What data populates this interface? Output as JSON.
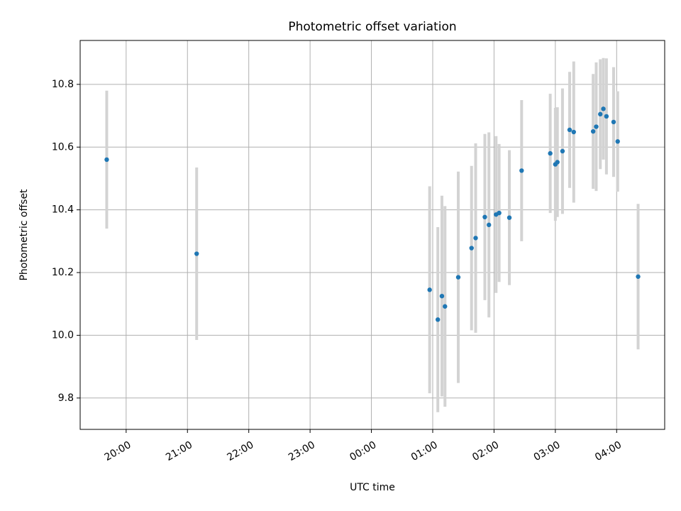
{
  "chart_data": {
    "type": "scatter",
    "title": "Photometric offset variation",
    "xlabel": "UTC time",
    "ylabel": "Photometric offset",
    "grid": true,
    "xlim": [
      "19:15",
      "04:47"
    ],
    "ylim": [
      9.7,
      10.94
    ],
    "x_ticks": [
      "20:00",
      "21:00",
      "22:00",
      "23:00",
      "00:00",
      "01:00",
      "02:00",
      "03:00",
      "04:00"
    ],
    "y_ticks": [
      "9.8",
      "10.0",
      "10.2",
      "10.4",
      "10.6",
      "10.8"
    ],
    "point_color": "#1f77b4",
    "errorbar_color": "#d3d3d3",
    "points": [
      {
        "t": "19:41",
        "y": 10.56,
        "err": 0.22
      },
      {
        "t": "21:09",
        "y": 10.26,
        "err": 0.275
      },
      {
        "t": "00:57",
        "y": 10.145,
        "err": 0.33
      },
      {
        "t": "01:05",
        "y": 10.05,
        "err": 0.295
      },
      {
        "t": "01:09",
        "y": 10.125,
        "err": 0.32
      },
      {
        "t": "01:12",
        "y": 10.092,
        "err": 0.32
      },
      {
        "t": "01:25",
        "y": 10.185,
        "err": 0.337
      },
      {
        "t": "01:38",
        "y": 10.278,
        "err": 0.262
      },
      {
        "t": "01:42",
        "y": 10.31,
        "err": 0.302
      },
      {
        "t": "01:51",
        "y": 10.377,
        "err": 0.265
      },
      {
        "t": "01:55",
        "y": 10.352,
        "err": 0.295
      },
      {
        "t": "02:02",
        "y": 10.385,
        "err": 0.25
      },
      {
        "t": "02:05",
        "y": 10.39,
        "err": 0.22
      },
      {
        "t": "02:15",
        "y": 10.375,
        "err": 0.215
      },
      {
        "t": "02:27",
        "y": 10.525,
        "err": 0.225
      },
      {
        "t": "02:55",
        "y": 10.58,
        "err": 0.19
      },
      {
        "t": "03:00",
        "y": 10.545,
        "err": 0.18
      },
      {
        "t": "03:02",
        "y": 10.552,
        "err": 0.175
      },
      {
        "t": "03:07",
        "y": 10.587,
        "err": 0.2
      },
      {
        "t": "03:14",
        "y": 10.655,
        "err": 0.185
      },
      {
        "t": "03:18",
        "y": 10.648,
        "err": 0.225
      },
      {
        "t": "03:37",
        "y": 10.65,
        "err": 0.183
      },
      {
        "t": "03:40",
        "y": 10.665,
        "err": 0.205
      },
      {
        "t": "03:44",
        "y": 10.705,
        "err": 0.175
      },
      {
        "t": "03:47",
        "y": 10.722,
        "err": 0.162
      },
      {
        "t": "03:50",
        "y": 10.698,
        "err": 0.185
      },
      {
        "t": "03:57",
        "y": 10.68,
        "err": 0.175
      },
      {
        "t": "04:01",
        "y": 10.618,
        "err": 0.16
      },
      {
        "t": "04:21",
        "y": 10.187,
        "err": 0.232
      }
    ]
  }
}
